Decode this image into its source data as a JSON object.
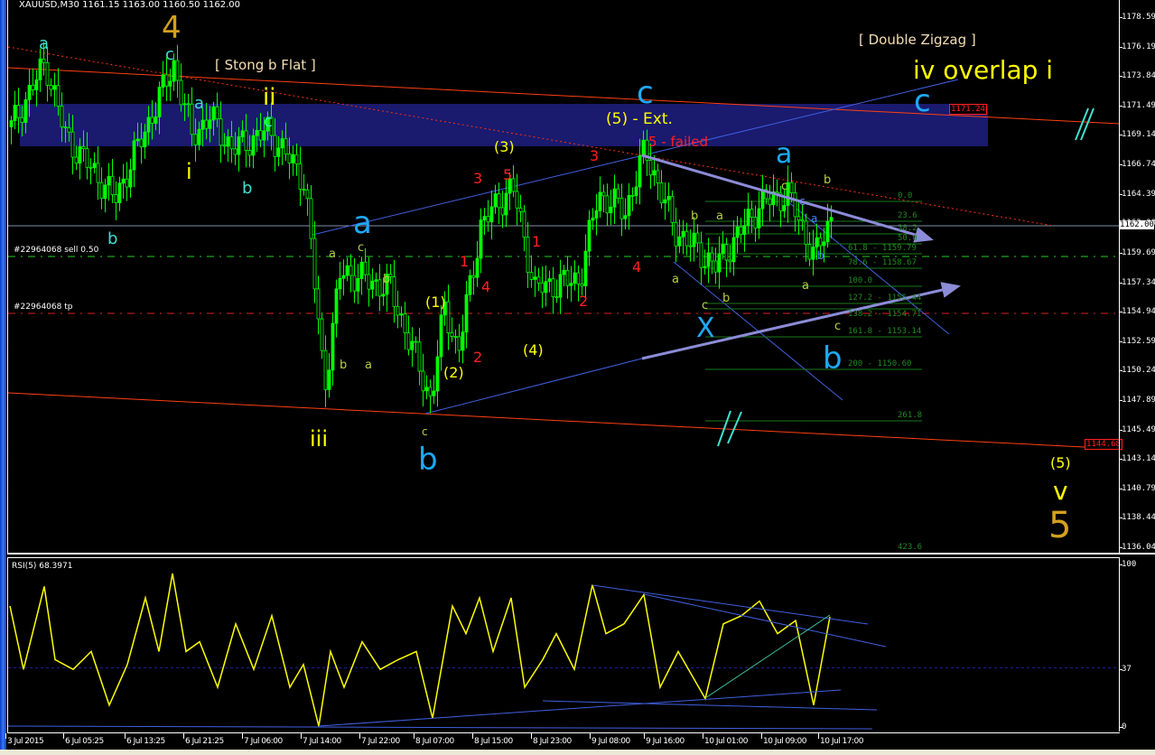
{
  "header": {
    "symbol_line": "XAUUSD,M30  1161.15 1163.00 1160.50 1162.00"
  },
  "colors": {
    "background": "#000000",
    "bull": "#00ff00",
    "wave_cyan": "#40e0d0",
    "wave_yellow": "#ffff00",
    "wave_orange": "#d4a020",
    "wave_blue": "#1eaaff",
    "wave_red": "#ff2020",
    "wave_olive": "#b8d040",
    "zone": "#1a1a6e",
    "rsi_line": "#ffff00"
  },
  "price_axis": {
    "ticks": [
      "1178.59",
      "1176.19",
      "1173.84",
      "1171.49",
      "1169.14",
      "1166.74",
      "1164.39",
      "1162.00",
      "1159.69",
      "1157.34",
      "1154.94",
      "1152.59",
      "1150.24",
      "1147.89",
      "1145.49",
      "1143.14",
      "1140.79",
      "1138.44",
      "1136.04"
    ],
    "current_price": "1162.00"
  },
  "price_tags": [
    "1171.24",
    "1144.68"
  ],
  "orders": {
    "sell": "#22964068 sell 0.50",
    "tp": "#22964068 tp"
  },
  "fib_levels": [
    "0.0",
    "23.6",
    "38.2",
    "50.0",
    "61.8 - 1159.79",
    "78.6 - 1158.67",
    "100.0",
    "127.2 - 1155.44",
    "138.2 - 1154.71",
    "161.8 - 1153.14",
    "200 - 1150.60",
    "261.8",
    "423.6"
  ],
  "time_axis": [
    "3 Jul 2015",
    "6 Jul 05:25",
    "6 Jul 13:25",
    "6 Jul 21:25",
    "7 Jul 06:00",
    "7 Jul 14:00",
    "7 Jul 22:00",
    "8 Jul 07:00",
    "8 Jul 15:00",
    "8 Jul 23:00",
    "9 Jul 08:00",
    "9 Jul 16:00",
    "10 Jul 01:00",
    "10 Jul 09:00",
    "10 Jul 17:00"
  ],
  "rsi": {
    "title": "RSI(5) 68.3971",
    "ticks": [
      "100",
      "37",
      "0"
    ]
  },
  "annotations": [
    "4",
    "5",
    "v",
    "(5)",
    "a",
    "c",
    "a",
    "c",
    "b",
    "b",
    "c",
    "ii",
    "i",
    "iii",
    "(1)",
    "(2)",
    "(3)",
    "(4)",
    "(5) - Ext.",
    "iv overlap i",
    "a",
    "b",
    "c",
    "a",
    "c",
    "X",
    "b",
    "a",
    "b",
    "c",
    "3",
    "5",
    "1",
    "4",
    "2",
    "1",
    "3",
    "4",
    "2",
    "5 - failed",
    "a",
    "c",
    "b",
    "b",
    "a",
    "a",
    "b",
    "a",
    "c",
    "b",
    "c",
    "b",
    "a",
    "c",
    "[ Stong b Flat ]",
    "[ Double Zigzag ]"
  ],
  "chart_data": {
    "type": "candlestick",
    "title": "XAUUSD,M30",
    "ylim": [
      1136.04,
      1178.59
    ],
    "price_pivots": [
      1169.2,
      1174.4,
      1168.5,
      1163.4,
      1174.2,
      1168.5,
      1170.0,
      1167.4,
      1168.9,
      1164.9,
      1148.3,
      1157.7,
      1157.0,
      1156.2,
      1147.2,
      1154.8,
      1151.1,
      1161.3,
      1164.5,
      1156.2,
      1157.0,
      1163.8,
      1162.4,
      1167.4,
      1160.9,
      1158.0,
      1163.1,
      1163.8,
      1158.7,
      1162.0
    ],
    "rsi": {
      "ylim": [
        0,
        100
      ],
      "level": 37,
      "values": [
        75,
        36,
        87,
        42,
        36,
        47,
        14,
        39,
        80,
        47,
        95,
        47,
        53,
        25,
        64,
        36,
        69,
        25,
        39,
        1,
        47,
        25,
        53,
        36,
        42,
        47,
        6,
        75,
        58,
        80,
        47,
        80,
        25,
        42,
        58,
        36,
        88,
        58,
        64,
        82,
        25,
        47,
        18,
        64,
        69,
        78,
        58,
        66,
        14,
        68.4
      ]
    }
  }
}
